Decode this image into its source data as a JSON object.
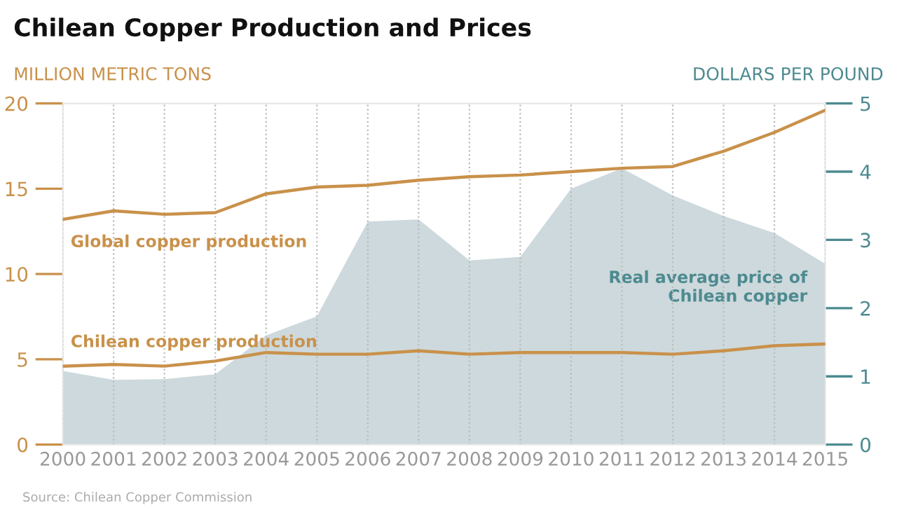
{
  "chart_data": {
    "type": "line",
    "title": "Chilean Copper Production and Prices",
    "ylabel": "MILLION METRIC TONS",
    "y2label": "DOLLARS PER POUND",
    "x": [
      2000,
      2001,
      2002,
      2003,
      2004,
      2005,
      2006,
      2007,
      2008,
      2009,
      2010,
      2011,
      2012,
      2013,
      2014,
      2015
    ],
    "series": [
      {
        "name": "Real average price of Chilean copper",
        "type": "area",
        "axis": "y2",
        "color": "#cdd9dc",
        "values": [
          1.08,
          0.95,
          0.96,
          1.03,
          1.6,
          1.88,
          3.27,
          3.3,
          2.7,
          2.75,
          3.75,
          4.05,
          3.65,
          3.35,
          3.1,
          2.65
        ]
      },
      {
        "name": "Global copper production",
        "color": "#c9914a",
        "values": [
          13.2,
          13.7,
          13.5,
          13.6,
          14.7,
          15.1,
          15.2,
          15.5,
          15.7,
          15.8,
          16.0,
          16.2,
          16.3,
          17.2,
          18.3,
          19.6
        ]
      },
      {
        "name": "Chilean copper production",
        "color": "#c9914a",
        "values": [
          4.6,
          4.7,
          4.6,
          4.9,
          5.4,
          5.3,
          5.3,
          5.5,
          5.3,
          5.4,
          5.4,
          5.4,
          5.3,
          5.5,
          5.8,
          5.9
        ]
      }
    ],
    "xlim": [
      2000,
      2015
    ],
    "xticks": [
      2000,
      2001,
      2002,
      2003,
      2004,
      2005,
      2006,
      2007,
      2008,
      2009,
      2010,
      2011,
      2012,
      2013,
      2014,
      2015
    ],
    "ylim": [
      0,
      20
    ],
    "yticks": [
      0,
      5,
      10,
      15,
      20
    ],
    "y2lim": [
      0,
      5
    ],
    "y2ticks": [
      0,
      1,
      2,
      3,
      4,
      5
    ],
    "grid": "x",
    "legend": false,
    "annotations": [
      "Source: Chilean Copper Commission"
    ]
  }
}
